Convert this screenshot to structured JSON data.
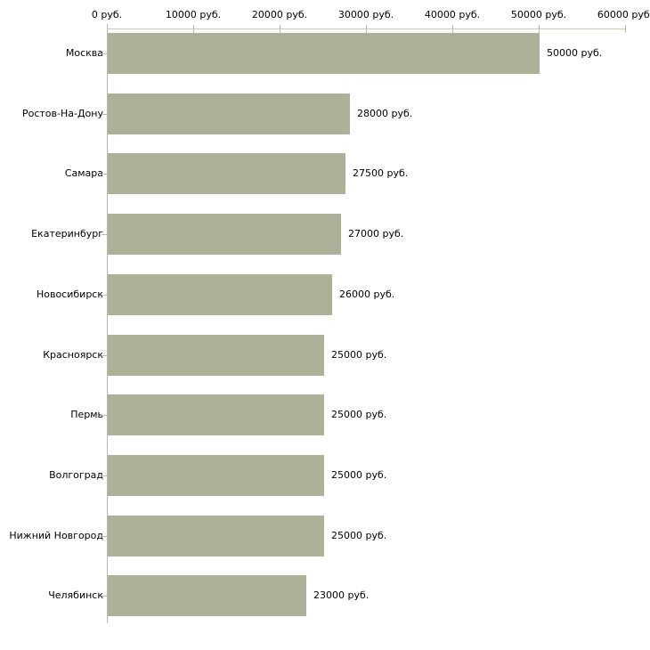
{
  "chart_data": {
    "type": "bar",
    "orientation": "horizontal",
    "title": "",
    "unit": "руб.",
    "categories": [
      "Москва",
      "Ростов-На-Дону",
      "Самара",
      "Екатеринбург",
      "Новосибирск",
      "Красноярск",
      "Пермь",
      "Волгоград",
      "Нижний Новгород",
      "Челябинск"
    ],
    "values": [
      50000,
      28000,
      27500,
      27000,
      26000,
      25000,
      25000,
      25000,
      25000,
      23000
    ],
    "value_labels": [
      "50000 руб.",
      "28000 руб.",
      "27500 руб.",
      "27000 руб.",
      "26000 руб.",
      "25000 руб.",
      "25000 руб.",
      "25000 руб.",
      "25000 руб.",
      "23000 руб."
    ],
    "x_axis": {
      "position": "top",
      "range": [
        0,
        60000
      ],
      "tick_values": [
        0,
        10000,
        20000,
        30000,
        40000,
        50000,
        60000
      ],
      "tick_labels": [
        "0 руб.",
        "10000 руб.",
        "20000 руб.",
        "30000 руб.",
        "40000 руб.",
        "50000 руб.",
        "60000 руб."
      ]
    },
    "grid": false,
    "legend": null
  },
  "colors": {
    "bar_fill": "#acb197",
    "axis_line": "#c9cbb4",
    "tick_mark": "#b9bc9e",
    "category_axis_line": "#b5b5b5",
    "text": "#000000",
    "background": "#ffffff"
  }
}
